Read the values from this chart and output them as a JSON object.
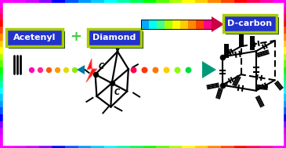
{
  "bg_color": "#ffffff",
  "label_acetenyl": "Acetenyl",
  "label_diamond": "Diamond",
  "label_dcarbon": "D-carbon",
  "label_plus": "+",
  "box_color": "#2233cc",
  "box_edge_color": "#aacc00",
  "box_shadow_color": "#003300",
  "figsize": [
    3.65,
    1.89
  ],
  "dpi": 100,
  "border_colors": [
    "#ff00ff",
    "#ee00ff",
    "#cc00ff",
    "#8800ff",
    "#0000ff",
    "#0055ff",
    "#0099ff",
    "#00ccff",
    "#00ffff",
    "#00ffaa",
    "#00ff55",
    "#00ff00",
    "#55ff00",
    "#aaff00",
    "#ffff00",
    "#ffcc00",
    "#ff8800",
    "#ff4400",
    "#ff0000",
    "#ff0055",
    "#ff00aa",
    "#ff00ff"
  ],
  "dots_left_colors": [
    "#ff00bb",
    "#ff2299",
    "#ff5500",
    "#ff9900",
    "#dddd00",
    "#88ee00"
  ],
  "dots_right_colors": [
    "#ff0055",
    "#ff3300",
    "#ff7700",
    "#ffcc00",
    "#88ff00",
    "#00dd44"
  ],
  "spectrum_colors": [
    "#00aaff",
    "#00ffee",
    "#44ff88",
    "#aaff00",
    "#ffff00",
    "#ffcc00",
    "#ff8800",
    "#ff4400",
    "#ff0088"
  ],
  "plus_color": "#44cc44",
  "tri_left_color": "#0077aa",
  "tri_right_color": "#009977",
  "lightning_color1": "#ff1111",
  "lightning_color2": "#ff5555"
}
